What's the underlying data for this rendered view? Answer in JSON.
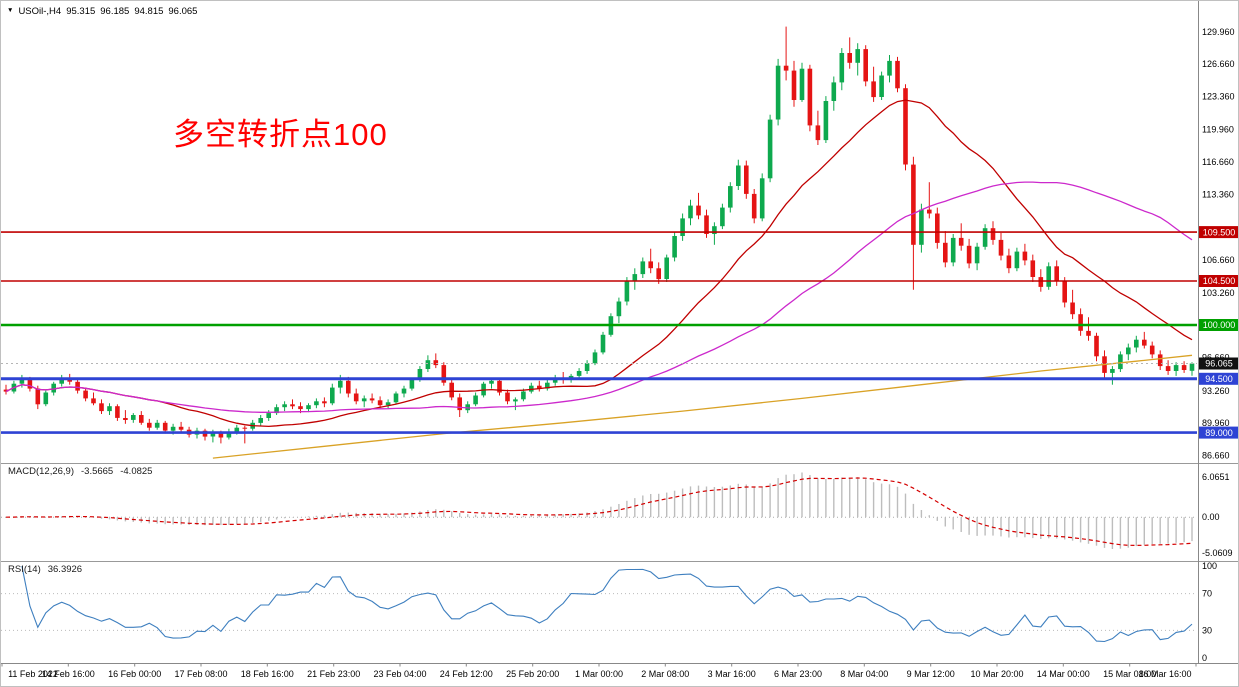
{
  "window": {
    "symbol_with_tf": "USOil-,H4",
    "ohlc": {
      "open": "95.315",
      "high": "96.185",
      "low": "94.815",
      "close": "96.065"
    }
  },
  "icons": {
    "dropdown_triangle": "▼"
  },
  "annotation": {
    "text": "多空转折点100",
    "color": "#ff0000"
  },
  "indicator_labels": {
    "macd_name": "MACD(12,26,9)",
    "macd_main_value": "-3.5665",
    "macd_signal_value": "-4.0825",
    "rsi_name": "RSI(14)",
    "rsi_value": "36.3926"
  },
  "axes": {
    "price_ticks": [
      "129.960",
      "126.660",
      "123.360",
      "119.960",
      "116.660",
      "113.360",
      "106.660",
      "103.260",
      "96.660",
      "93.260",
      "89.960",
      "86.660"
    ],
    "macd_ticks": {
      "top": "6.0651",
      "zero": "0.00",
      "bottom": "-5.0609"
    },
    "rsi_ticks": [
      "100",
      "70",
      "30",
      "0"
    ],
    "time_labels": [
      "11 Feb 2022",
      "14 Feb 16:00",
      "16 Feb 00:00",
      "17 Feb 08:00",
      "18 Feb 16:00",
      "21 Feb 23:00",
      "23 Feb 04:00",
      "24 Feb 12:00",
      "25 Feb 20:00",
      "1 Mar 00:00",
      "2 Mar 08:00",
      "3 Mar 16:00",
      "6 Mar 23:00",
      "8 Mar 04:00",
      "9 Mar 12:00",
      "10 Mar 20:00",
      "14 Mar 00:00",
      "15 Mar 08:00",
      "16 Mar 16:00"
    ]
  },
  "price_lines": {
    "horizontal": [
      {
        "price": 109.5,
        "label": "109.500",
        "color": "#C00000",
        "width": 1.6
      },
      {
        "price": 104.5,
        "label": "104.500",
        "color": "#C00000",
        "width": 1.6
      },
      {
        "price": 100.0,
        "label": "100.000",
        "color": "#00A000",
        "width": 2.6
      },
      {
        "price": 94.5,
        "label": "94.500",
        "color": "#2E43D4",
        "width": 3
      },
      {
        "price": 89.0,
        "label": "89.000",
        "color": "#2E43D4",
        "width": 2.6
      }
    ],
    "current": {
      "price": 96.065,
      "label": "96.065",
      "badge_color": "#111111",
      "line_color": "#B5B5B5"
    }
  },
  "colors": {
    "bull": "#0EA94E",
    "bear": "#E51414",
    "background": "#FFFFFF",
    "axis_text": "#000000",
    "separator": "#999999"
  },
  "chart_data": {
    "type": "candlestick",
    "symbol": "USOil-",
    "timeframe": "H4",
    "title": "USOil-,H4 95.315 96.185 94.815 96.065",
    "current_bar_ohlc": [
      95.315,
      96.185,
      94.815,
      96.065
    ],
    "view_price_range": [
      86.1,
      132.3
    ],
    "candles": [
      [
        93.4,
        93.9,
        92.9,
        93.2
      ],
      [
        93.2,
        94.3,
        93.0,
        94.0
      ],
      [
        94.0,
        94.9,
        93.6,
        94.5
      ],
      [
        94.5,
        94.7,
        93.2,
        93.5
      ],
      [
        93.5,
        93.8,
        91.4,
        91.9
      ],
      [
        91.9,
        93.3,
        91.7,
        93.1
      ],
      [
        93.1,
        94.2,
        92.8,
        94.0
      ],
      [
        94.0,
        94.9,
        93.7,
        94.6
      ],
      [
        94.6,
        95.0,
        93.9,
        94.2
      ],
      [
        94.2,
        94.4,
        93.0,
        93.3
      ],
      [
        93.3,
        93.6,
        92.2,
        92.5
      ],
      [
        92.5,
        93.1,
        91.8,
        92.0
      ],
      [
        92.0,
        92.4,
        90.9,
        91.2
      ],
      [
        91.2,
        92.0,
        90.8,
        91.7
      ],
      [
        91.7,
        91.9,
        90.2,
        90.5
      ],
      [
        90.5,
        91.3,
        89.9,
        90.3
      ],
      [
        90.3,
        91.0,
        90.0,
        90.8
      ],
      [
        90.8,
        91.2,
        89.8,
        90.0
      ],
      [
        90.0,
        90.4,
        89.2,
        89.5
      ],
      [
        89.5,
        90.3,
        89.3,
        90.0
      ],
      [
        90.0,
        90.2,
        88.9,
        89.2
      ],
      [
        89.2,
        89.9,
        88.8,
        89.6
      ],
      [
        89.6,
        90.1,
        89.0,
        89.3
      ],
      [
        89.3,
        89.6,
        88.5,
        88.8
      ],
      [
        88.8,
        89.5,
        88.4,
        89.2
      ],
      [
        89.2,
        89.4,
        88.2,
        88.6
      ],
      [
        88.6,
        89.3,
        88.0,
        89.0
      ],
      [
        89.0,
        89.2,
        87.9,
        88.5
      ],
      [
        88.5,
        89.4,
        88.3,
        89.1
      ],
      [
        89.1,
        89.8,
        88.8,
        89.5
      ],
      [
        89.5,
        89.7,
        87.9,
        89.4
      ],
      [
        89.4,
        90.3,
        89.2,
        90.0
      ],
      [
        90.0,
        90.8,
        89.7,
        90.5
      ],
      [
        90.5,
        91.3,
        90.2,
        91.0
      ],
      [
        91.0,
        91.9,
        90.8,
        91.6
      ],
      [
        91.6,
        92.2,
        91.2,
        91.9
      ],
      [
        91.9,
        92.4,
        91.4,
        91.7
      ],
      [
        91.7,
        92.1,
        91.0,
        91.4
      ],
      [
        91.4,
        92.0,
        91.1,
        91.8
      ],
      [
        91.8,
        92.5,
        91.5,
        92.2
      ],
      [
        92.2,
        92.6,
        91.6,
        92.0
      ],
      [
        92.0,
        94.0,
        91.8,
        93.6
      ],
      [
        93.6,
        94.9,
        93.0,
        94.3
      ],
      [
        94.3,
        94.7,
        92.6,
        93.0
      ],
      [
        93.0,
        93.5,
        91.9,
        92.2
      ],
      [
        92.2,
        92.8,
        91.6,
        92.5
      ],
      [
        92.5,
        93.0,
        92.0,
        92.3
      ],
      [
        92.3,
        92.7,
        91.5,
        91.8
      ],
      [
        91.8,
        92.4,
        91.5,
        92.1
      ],
      [
        92.1,
        93.2,
        91.9,
        93.0
      ],
      [
        93.0,
        93.8,
        92.6,
        93.5
      ],
      [
        93.5,
        94.6,
        93.3,
        94.4
      ],
      [
        94.4,
        95.8,
        94.2,
        95.5
      ],
      [
        95.5,
        96.9,
        95.2,
        96.4
      ],
      [
        96.4,
        97.1,
        95.6,
        95.9
      ],
      [
        95.9,
        96.2,
        93.8,
        94.1
      ],
      [
        94.1,
        94.5,
        92.3,
        92.6
      ],
      [
        92.6,
        93.0,
        90.6,
        91.3
      ],
      [
        91.3,
        92.2,
        91.0,
        91.9
      ],
      [
        91.9,
        93.1,
        91.7,
        92.8
      ],
      [
        92.8,
        94.2,
        92.6,
        94.0
      ],
      [
        94.0,
        94.6,
        93.5,
        94.3
      ],
      [
        94.3,
        94.5,
        92.8,
        93.1
      ],
      [
        93.1,
        93.4,
        91.9,
        92.2
      ],
      [
        92.2,
        92.6,
        91.3,
        92.4
      ],
      [
        92.4,
        93.5,
        92.2,
        93.2
      ],
      [
        93.2,
        94.1,
        93.0,
        93.8
      ],
      [
        93.8,
        94.3,
        93.2,
        93.5
      ],
      [
        93.5,
        94.4,
        93.3,
        94.1
      ],
      [
        94.1,
        94.9,
        93.8,
        94.6
      ],
      [
        94.6,
        95.2,
        94.0,
        94.4
      ],
      [
        94.4,
        95.0,
        94.1,
        94.8
      ],
      [
        94.8,
        95.6,
        94.5,
        95.3
      ],
      [
        95.3,
        96.4,
        95.0,
        96.1
      ],
      [
        96.1,
        97.5,
        95.9,
        97.2
      ],
      [
        97.2,
        99.3,
        97.0,
        99.0
      ],
      [
        99.0,
        101.2,
        98.8,
        100.9
      ],
      [
        100.9,
        102.8,
        100.2,
        102.4
      ],
      [
        102.4,
        104.9,
        102.0,
        104.5
      ],
      [
        104.5,
        105.8,
        103.6,
        105.2
      ],
      [
        105.2,
        106.9,
        104.8,
        106.5
      ],
      [
        106.5,
        107.8,
        105.3,
        105.8
      ],
      [
        105.8,
        106.4,
        104.2,
        104.7
      ],
      [
        104.7,
        107.2,
        104.4,
        106.9
      ],
      [
        106.9,
        109.5,
        106.5,
        109.1
      ],
      [
        109.1,
        111.4,
        108.6,
        110.9
      ],
      [
        110.9,
        112.8,
        110.2,
        112.2
      ],
      [
        112.2,
        113.5,
        110.8,
        111.2
      ],
      [
        111.2,
        111.8,
        108.9,
        109.3
      ],
      [
        109.3,
        110.5,
        108.2,
        110.1
      ],
      [
        110.1,
        112.4,
        109.8,
        112.0
      ],
      [
        112.0,
        114.6,
        111.5,
        114.2
      ],
      [
        114.2,
        116.9,
        113.8,
        116.3
      ],
      [
        116.3,
        116.8,
        112.9,
        113.4
      ],
      [
        113.4,
        113.9,
        110.4,
        110.9
      ],
      [
        110.9,
        115.5,
        110.6,
        115.0
      ],
      [
        115.0,
        121.5,
        114.6,
        121.0
      ],
      [
        121.0,
        127.2,
        120.4,
        126.5
      ],
      [
        126.5,
        130.5,
        125.0,
        126.0
      ],
      [
        126.0,
        127.0,
        122.3,
        123.0
      ],
      [
        123.0,
        126.8,
        122.8,
        126.2
      ],
      [
        126.2,
        126.6,
        119.8,
        120.4
      ],
      [
        120.4,
        121.9,
        118.4,
        118.9
      ],
      [
        118.9,
        123.4,
        118.6,
        122.9
      ],
      [
        122.9,
        125.4,
        121.9,
        124.8
      ],
      [
        124.8,
        128.3,
        124.0,
        127.8
      ],
      [
        127.8,
        129.4,
        126.2,
        126.8
      ],
      [
        126.8,
        128.8,
        125.5,
        128.2
      ],
      [
        128.2,
        128.6,
        124.4,
        124.9
      ],
      [
        124.9,
        126.4,
        122.8,
        123.3
      ],
      [
        123.3,
        125.9,
        123.0,
        125.5
      ],
      [
        125.5,
        127.6,
        124.8,
        127.0
      ],
      [
        127.0,
        127.4,
        123.8,
        124.2
      ],
      [
        124.2,
        124.6,
        115.8,
        116.4
      ],
      [
        116.4,
        117.2,
        103.6,
        108.2
      ],
      [
        108.2,
        112.4,
        107.4,
        111.8
      ],
      [
        111.8,
        114.6,
        110.9,
        111.4
      ],
      [
        111.4,
        112.0,
        107.8,
        108.4
      ],
      [
        108.4,
        109.6,
        105.9,
        106.4
      ],
      [
        106.4,
        109.3,
        106.0,
        108.9
      ],
      [
        108.9,
        110.4,
        107.6,
        108.1
      ],
      [
        108.1,
        108.8,
        105.8,
        106.3
      ],
      [
        106.3,
        108.4,
        105.6,
        108.0
      ],
      [
        108.0,
        110.3,
        107.7,
        109.9
      ],
      [
        109.9,
        110.6,
        108.2,
        108.7
      ],
      [
        108.7,
        109.4,
        106.6,
        107.1
      ],
      [
        107.1,
        107.8,
        105.3,
        105.8
      ],
      [
        105.8,
        107.9,
        105.5,
        107.5
      ],
      [
        107.5,
        108.3,
        106.1,
        106.6
      ],
      [
        106.6,
        107.2,
        104.4,
        104.9
      ],
      [
        104.9,
        105.7,
        103.4,
        103.9
      ],
      [
        103.9,
        106.4,
        103.6,
        106.0
      ],
      [
        106.0,
        106.6,
        104.0,
        104.5
      ],
      [
        104.5,
        104.9,
        101.8,
        102.3
      ],
      [
        102.3,
        103.6,
        100.6,
        101.1
      ],
      [
        101.1,
        101.7,
        98.9,
        99.4
      ],
      [
        99.4,
        100.8,
        98.4,
        98.9
      ],
      [
        98.9,
        99.2,
        96.3,
        96.8
      ],
      [
        96.8,
        97.4,
        94.6,
        95.1
      ],
      [
        95.1,
        95.8,
        93.9,
        95.5
      ],
      [
        95.5,
        97.3,
        95.2,
        97.0
      ],
      [
        97.0,
        98.1,
        96.4,
        97.7
      ],
      [
        97.7,
        98.9,
        97.2,
        98.5
      ],
      [
        98.5,
        99.3,
        97.6,
        97.9
      ],
      [
        97.9,
        98.3,
        96.6,
        97.0
      ],
      [
        97.0,
        97.4,
        95.4,
        95.8
      ],
      [
        95.8,
        96.4,
        94.9,
        95.3
      ],
      [
        95.3,
        96.2,
        94.8,
        95.9
      ],
      [
        95.9,
        96.3,
        95.1,
        95.4
      ],
      [
        95.315,
        96.185,
        94.815,
        96.065
      ]
    ],
    "overlays": [
      {
        "name": "fast-ma",
        "kind": "sma",
        "period": 20,
        "color": "#C00000"
      },
      {
        "name": "mid-ma",
        "kind": "sma",
        "period": 50,
        "color": "#CC29CC"
      },
      {
        "name": "slow-ma",
        "kind": "points",
        "color": "#D9A226",
        "points": [
          [
            26,
            86.4
          ],
          [
            40,
            87.6
          ],
          [
            55,
            88.9
          ],
          [
            70,
            90.0
          ],
          [
            85,
            91.2
          ],
          [
            100,
            92.5
          ],
          [
            115,
            93.9
          ],
          [
            130,
            95.3
          ],
          [
            142,
            96.3
          ],
          [
            149,
            96.9
          ]
        ]
      }
    ],
    "indicators": [
      {
        "name": "macd",
        "params": [
          12,
          26,
          9
        ],
        "values_shown": [
          -3.5665,
          -4.0825
        ],
        "histogram_color": "#BDBDBD",
        "signal_color": "#D40000",
        "axis_range_shown": [
          -5.0609,
          6.0651
        ]
      },
      {
        "name": "rsi",
        "period": 14,
        "value_shown": 36.3926,
        "line_color": "#3E7FBF",
        "levels": [
          70,
          30
        ],
        "axis_range_shown": [
          0,
          100
        ]
      }
    ]
  }
}
